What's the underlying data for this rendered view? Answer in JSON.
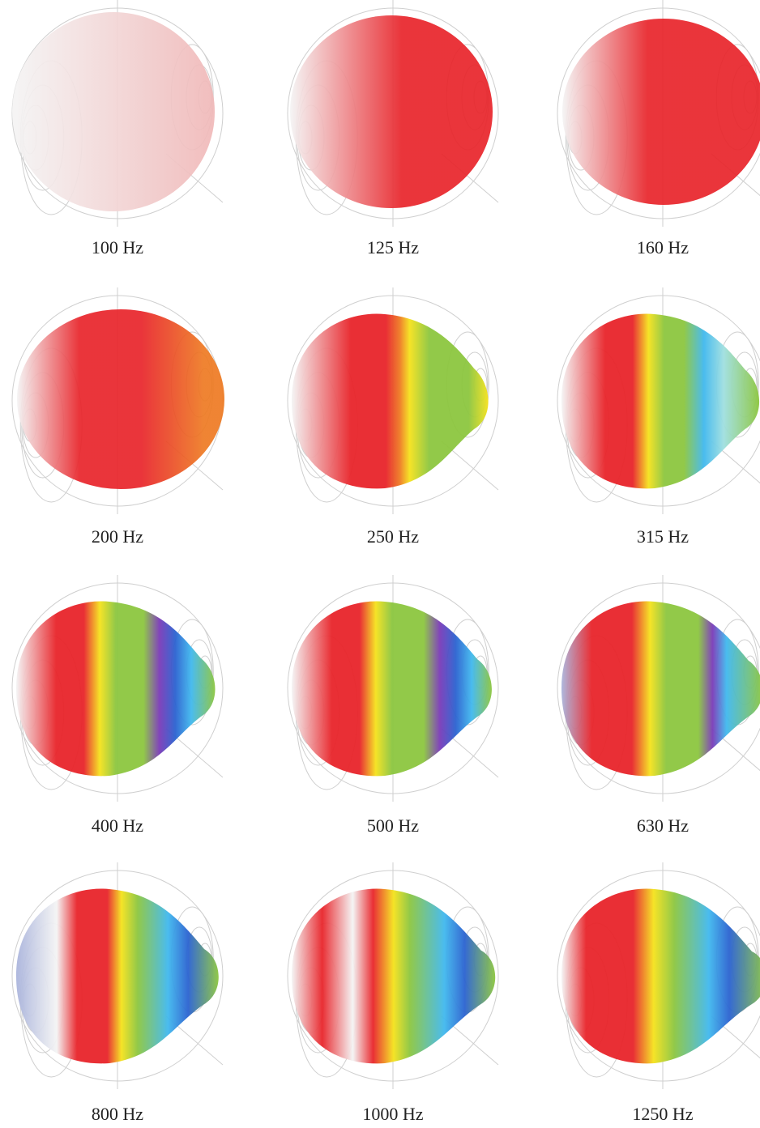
{
  "panels": [
    {
      "label": "100 Hz"
    },
    {
      "label": "125 Hz"
    },
    {
      "label": "160 Hz"
    },
    {
      "label": "200 Hz"
    },
    {
      "label": "250 Hz"
    },
    {
      "label": "315 Hz"
    },
    {
      "label": "400 Hz"
    },
    {
      "label": "500 Hz"
    },
    {
      "label": "630 Hz"
    },
    {
      "label": "800 Hz"
    },
    {
      "label": "1000 Hz"
    },
    {
      "label": "1250 Hz"
    }
  ]
}
